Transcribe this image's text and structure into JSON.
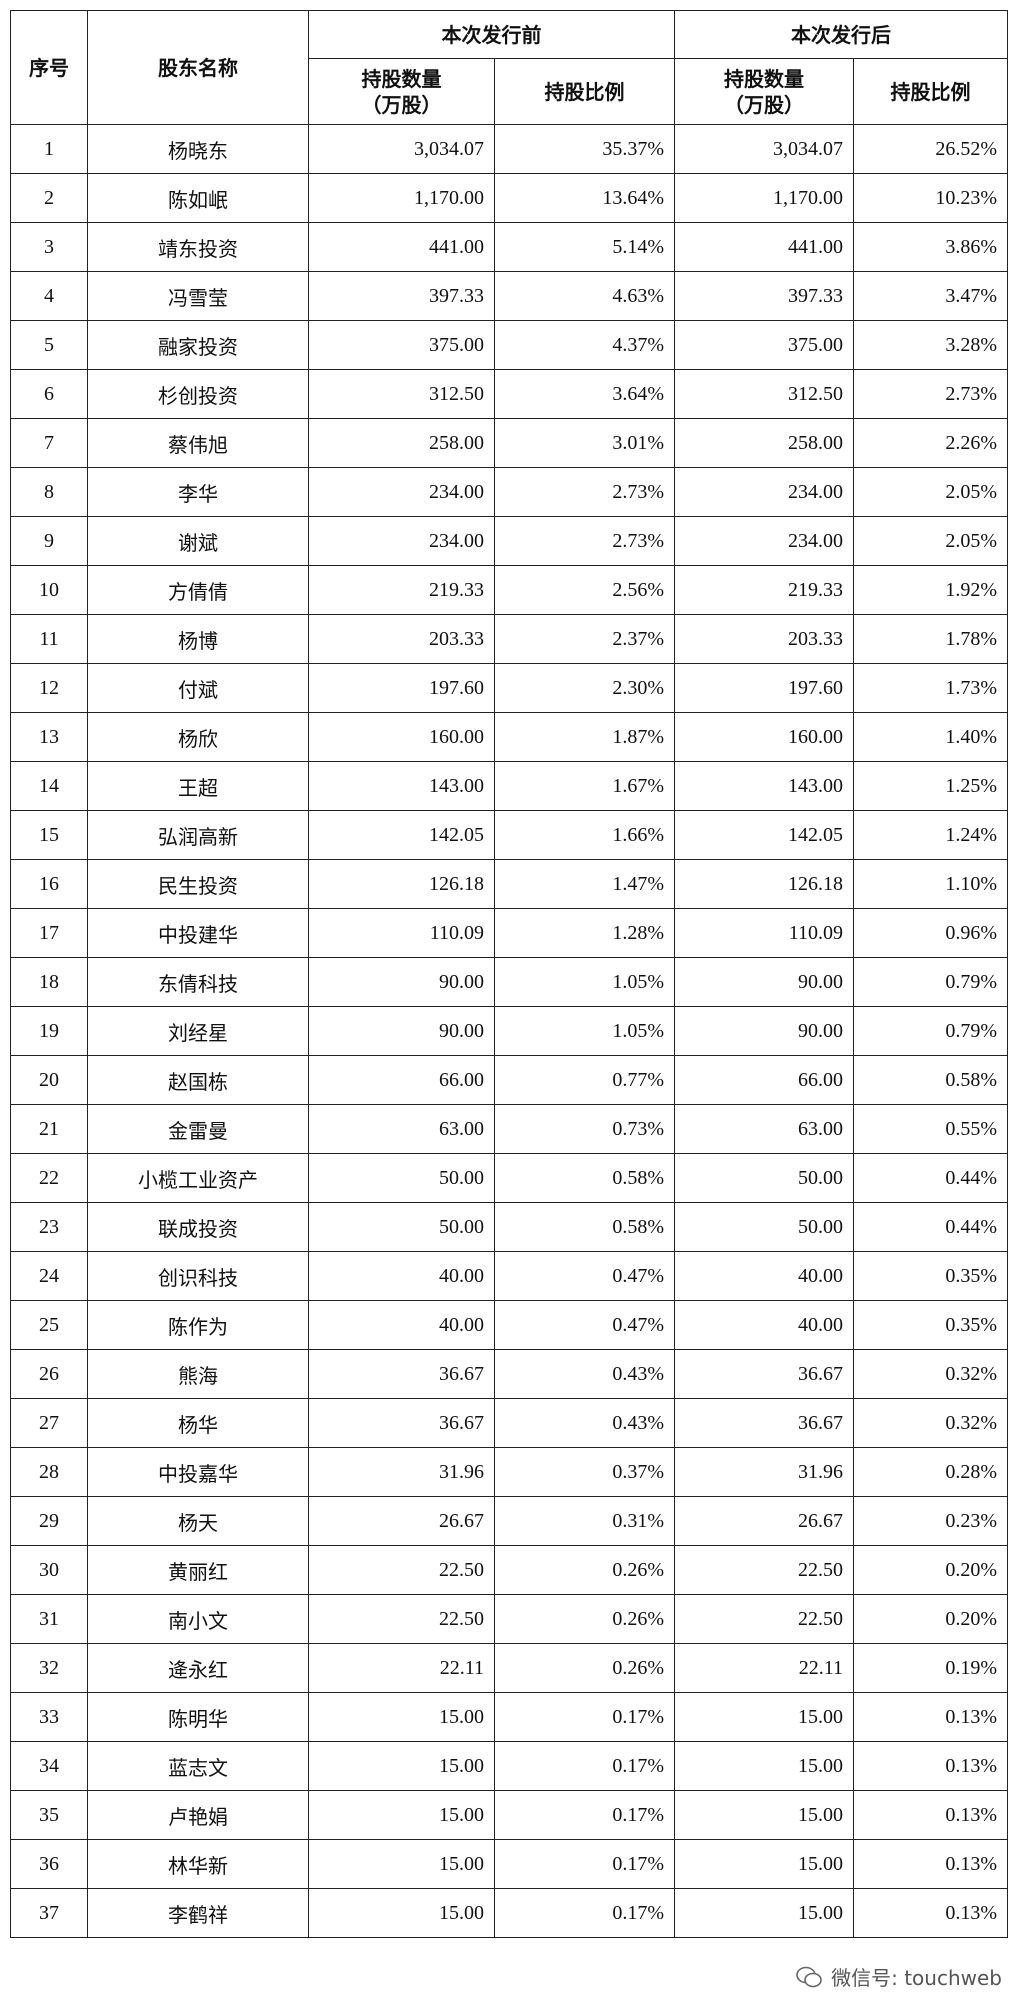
{
  "table": {
    "header": {
      "seq": "序号",
      "name": "股东名称",
      "before": "本次发行前",
      "after": "本次发行后",
      "shares": "持股数量\n（万股）",
      "ratio": "持股比例"
    },
    "rows": [
      [
        "1",
        "杨晓东",
        "3,034.07",
        "35.37%",
        "3,034.07",
        "26.52%"
      ],
      [
        "2",
        "陈如岷",
        "1,170.00",
        "13.64%",
        "1,170.00",
        "10.23%"
      ],
      [
        "3",
        "靖东投资",
        "441.00",
        "5.14%",
        "441.00",
        "3.86%"
      ],
      [
        "4",
        "冯雪莹",
        "397.33",
        "4.63%",
        "397.33",
        "3.47%"
      ],
      [
        "5",
        "融家投资",
        "375.00",
        "4.37%",
        "375.00",
        "3.28%"
      ],
      [
        "6",
        "杉创投资",
        "312.50",
        "3.64%",
        "312.50",
        "2.73%"
      ],
      [
        "7",
        "蔡伟旭",
        "258.00",
        "3.01%",
        "258.00",
        "2.26%"
      ],
      [
        "8",
        "李华",
        "234.00",
        "2.73%",
        "234.00",
        "2.05%"
      ],
      [
        "9",
        "谢斌",
        "234.00",
        "2.73%",
        "234.00",
        "2.05%"
      ],
      [
        "10",
        "方倩倩",
        "219.33",
        "2.56%",
        "219.33",
        "1.92%"
      ],
      [
        "11",
        "杨博",
        "203.33",
        "2.37%",
        "203.33",
        "1.78%"
      ],
      [
        "12",
        "付斌",
        "197.60",
        "2.30%",
        "197.60",
        "1.73%"
      ],
      [
        "13",
        "杨欣",
        "160.00",
        "1.87%",
        "160.00",
        "1.40%"
      ],
      [
        "14",
        "王超",
        "143.00",
        "1.67%",
        "143.00",
        "1.25%"
      ],
      [
        "15",
        "弘润高新",
        "142.05",
        "1.66%",
        "142.05",
        "1.24%"
      ],
      [
        "16",
        "民生投资",
        "126.18",
        "1.47%",
        "126.18",
        "1.10%"
      ],
      [
        "17",
        "中投建华",
        "110.09",
        "1.28%",
        "110.09",
        "0.96%"
      ],
      [
        "18",
        "东倩科技",
        "90.00",
        "1.05%",
        "90.00",
        "0.79%"
      ],
      [
        "19",
        "刘经星",
        "90.00",
        "1.05%",
        "90.00",
        "0.79%"
      ],
      [
        "20",
        "赵国栋",
        "66.00",
        "0.77%",
        "66.00",
        "0.58%"
      ],
      [
        "21",
        "金雷曼",
        "63.00",
        "0.73%",
        "63.00",
        "0.55%"
      ],
      [
        "22",
        "小榄工业资产",
        "50.00",
        "0.58%",
        "50.00",
        "0.44%"
      ],
      [
        "23",
        "联成投资",
        "50.00",
        "0.58%",
        "50.00",
        "0.44%"
      ],
      [
        "24",
        "创识科技",
        "40.00",
        "0.47%",
        "40.00",
        "0.35%"
      ],
      [
        "25",
        "陈作为",
        "40.00",
        "0.47%",
        "40.00",
        "0.35%"
      ],
      [
        "26",
        "熊海",
        "36.67",
        "0.43%",
        "36.67",
        "0.32%"
      ],
      [
        "27",
        "杨华",
        "36.67",
        "0.43%",
        "36.67",
        "0.32%"
      ],
      [
        "28",
        "中投嘉华",
        "31.96",
        "0.37%",
        "31.96",
        "0.28%"
      ],
      [
        "29",
        "杨天",
        "26.67",
        "0.31%",
        "26.67",
        "0.23%"
      ],
      [
        "30",
        "黄丽红",
        "22.50",
        "0.26%",
        "22.50",
        "0.20%"
      ],
      [
        "31",
        "南小文",
        "22.50",
        "0.26%",
        "22.50",
        "0.20%"
      ],
      [
        "32",
        "逄永红",
        "22.11",
        "0.26%",
        "22.11",
        "0.19%"
      ],
      [
        "33",
        "陈明华",
        "15.00",
        "0.17%",
        "15.00",
        "0.13%"
      ],
      [
        "34",
        "蓝志文",
        "15.00",
        "0.17%",
        "15.00",
        "0.13%"
      ],
      [
        "35",
        "卢艳娟",
        "15.00",
        "0.17%",
        "15.00",
        "0.13%"
      ],
      [
        "36",
        "林华新",
        "15.00",
        "0.17%",
        "15.00",
        "0.13%"
      ],
      [
        "37",
        "李鹤祥",
        "15.00",
        "0.17%",
        "15.00",
        "0.13%"
      ]
    ]
  },
  "watermark": "微信号: touchweb"
}
